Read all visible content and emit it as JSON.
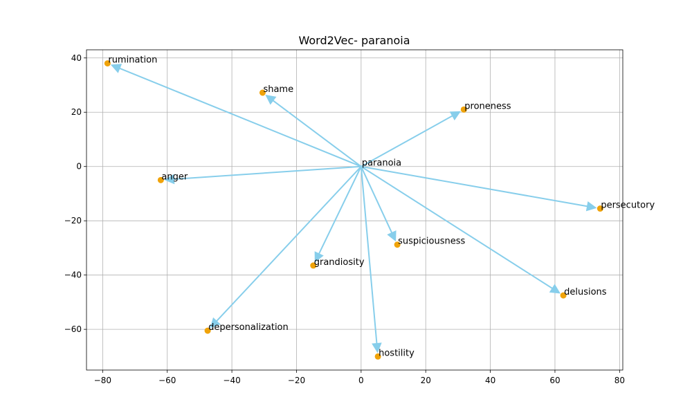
{
  "chart_data": {
    "type": "scatter",
    "title": "Word2Vec- paranoia",
    "xlabel": "",
    "ylabel": "",
    "xlim": [
      -85,
      81
    ],
    "ylim": [
      -75,
      43
    ],
    "xticks": [
      -80,
      -60,
      -40,
      -20,
      0,
      20,
      40,
      60,
      80
    ],
    "yticks": [
      -60,
      -40,
      -20,
      0,
      20,
      40
    ],
    "xtick_labels": [
      "−80",
      "−60",
      "−40",
      "−20",
      "0",
      "20",
      "40",
      "60",
      "80"
    ],
    "ytick_labels": [
      "−60",
      "−40",
      "−20",
      "0",
      "20",
      "40"
    ],
    "grid": true,
    "center": {
      "label": "paranoia",
      "x": 0,
      "y": 0
    },
    "points": [
      {
        "label": "rumination",
        "x": -78.5,
        "y": 38
      },
      {
        "label": "shame",
        "x": -30.5,
        "y": 27.2
      },
      {
        "label": "proneness",
        "x": 31.8,
        "y": 21
      },
      {
        "label": "anger",
        "x": -62,
        "y": -5
      },
      {
        "label": "persecutory",
        "x": 74,
        "y": -15.5
      },
      {
        "label": "suspiciousness",
        "x": 11.2,
        "y": -28.8
      },
      {
        "label": "grandiosity",
        "x": -14.8,
        "y": -36.5
      },
      {
        "label": "delusions",
        "x": 62.6,
        "y": -47.5
      },
      {
        "label": "depersonalization",
        "x": -47.5,
        "y": -60.5
      },
      {
        "label": "hostility",
        "x": 5.2,
        "y": -70
      }
    ],
    "colors": {
      "point": "#f0a30a",
      "arrow": "#87ceeb"
    }
  }
}
